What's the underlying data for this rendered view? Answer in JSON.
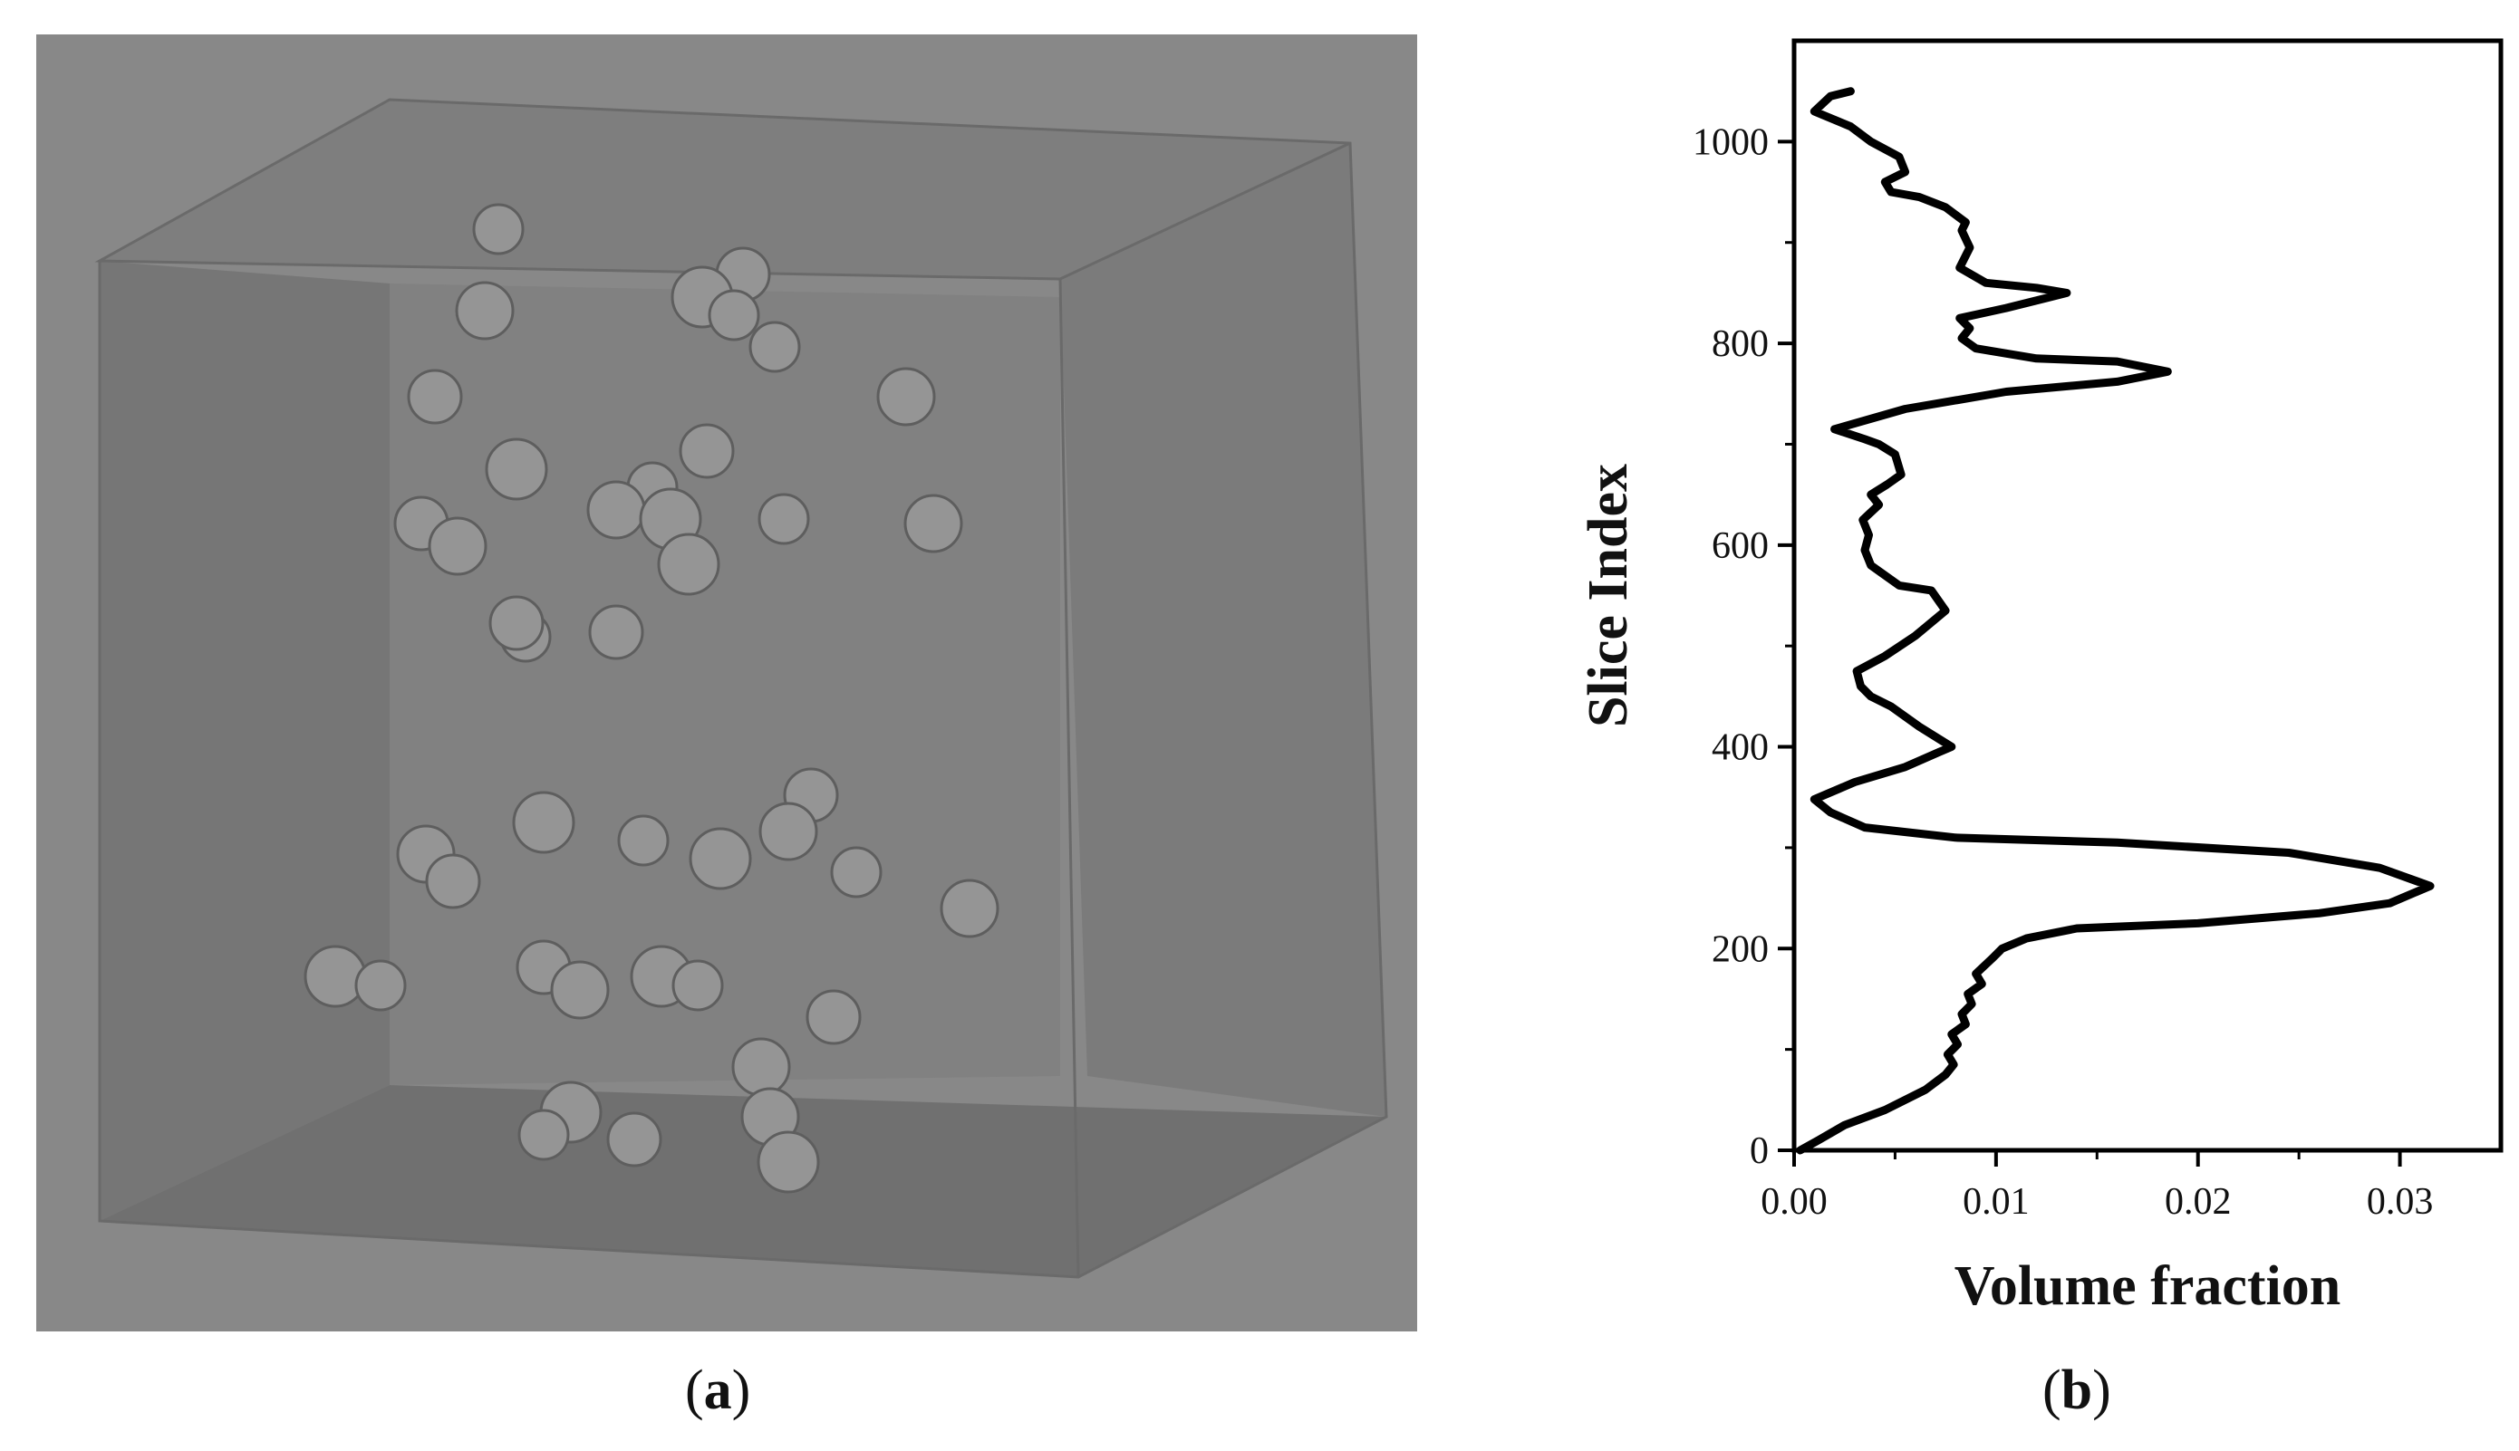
{
  "panels": {
    "a": {
      "label_open": "(",
      "label_letter": "a",
      "label_close": ")"
    },
    "b": {
      "label_open": "(",
      "label_letter": "b",
      "label_close": ")"
    }
  },
  "colors": {
    "image_background": "#888888",
    "box_face": "#7c7c7c",
    "sphere": "#959595",
    "line": "#000000"
  },
  "chart_data": {
    "type": "line",
    "title": "",
    "xlabel": "Volume fraction",
    "ylabel": "Slice Index",
    "xlim": [
      0.0,
      0.035
    ],
    "ylim": [
      0,
      1100
    ],
    "xticks": [
      0.0,
      0.01,
      0.02,
      0.03
    ],
    "xtick_labels": [
      "0.00",
      "0.01",
      "0.02",
      "0.03"
    ],
    "yticks": [
      0,
      200,
      400,
      600,
      800,
      1000
    ],
    "ytick_labels": [
      "0",
      "200",
      "400",
      "600",
      "800",
      "1000"
    ],
    "grid": false,
    "series": [
      {
        "x": [
          0.0003,
          0.0012,
          0.0025,
          0.0045,
          0.0065,
          0.0075,
          0.0079,
          0.0076,
          0.0081,
          0.0078,
          0.0085,
          0.0083,
          0.0088,
          0.0086,
          0.0093,
          0.009,
          0.0098,
          0.0103,
          0.0115,
          0.014,
          0.02,
          0.026,
          0.0295,
          0.0315,
          0.029,
          0.0245,
          0.016,
          0.008,
          0.0035,
          0.0018,
          0.001,
          0.003,
          0.0055,
          0.0072,
          0.0078,
          0.0062,
          0.0048,
          0.0038,
          0.0033,
          0.0031,
          0.0045,
          0.006,
          0.0075,
          0.0068,
          0.0052,
          0.0038,
          0.0035,
          0.0037,
          0.0034,
          0.0042,
          0.0038,
          0.0046,
          0.0053,
          0.005,
          0.0042,
          0.0035,
          0.002,
          0.0055,
          0.0105,
          0.016,
          0.0185,
          0.016,
          0.012,
          0.009,
          0.0083,
          0.0087,
          0.0082,
          0.0105,
          0.0125,
          0.0135,
          0.012,
          0.0095,
          0.0082,
          0.0087,
          0.0083,
          0.0085,
          0.0075,
          0.0062,
          0.0048,
          0.0045,
          0.0055,
          0.0052,
          0.0038,
          0.0028,
          0.001,
          0.0018,
          0.0028
        ],
        "y": [
          0,
          10,
          25,
          40,
          60,
          75,
          85,
          95,
          105,
          115,
          125,
          135,
          145,
          155,
          165,
          175,
          190,
          200,
          210,
          220,
          225,
          235,
          245,
          262,
          280,
          295,
          305,
          310,
          320,
          335,
          348,
          365,
          380,
          395,
          400,
          420,
          440,
          450,
          460,
          475,
          490,
          510,
          535,
          555,
          560,
          580,
          595,
          610,
          625,
          640,
          650,
          660,
          670,
          690,
          700,
          705,
          715,
          735,
          752,
          762,
          772,
          782,
          785,
          795,
          805,
          815,
          825,
          835,
          845,
          850,
          855,
          860,
          875,
          895,
          912,
          920,
          935,
          945,
          950,
          960,
          970,
          985,
          1000,
          1015,
          1030,
          1045,
          1050
        ]
      }
    ]
  }
}
